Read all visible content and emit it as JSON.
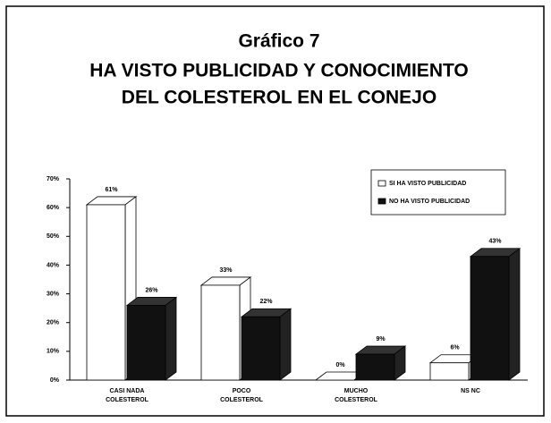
{
  "chart_data": {
    "type": "bar3d",
    "title": "Gráfico 7",
    "subtitle": [
      "HA VISTO PUBLICIDAD Y CONOCIMIENTO",
      "DEL COLESTEROL EN EL CONEJO"
    ],
    "categories": [
      [
        "CASI NADA",
        "COLESTEROL"
      ],
      [
        "POCO",
        "COLESTEROL"
      ],
      [
        "MUCHO",
        "COLESTEROL"
      ],
      [
        "NS NC"
      ]
    ],
    "series": [
      {
        "name": "SI HA VISTO PUBLICIDAD",
        "color": "#ffffff",
        "values": [
          61,
          33,
          0,
          6
        ],
        "value_labels": [
          "61%",
          "33%",
          "0%",
          "6%"
        ]
      },
      {
        "name": "NO HA VISTO PUBLICIDAD",
        "color": "#111111",
        "values": [
          26,
          22,
          9,
          43
        ],
        "value_labels": [
          "26%",
          "22%",
          "9%",
          "43%"
        ]
      }
    ],
    "ylim": [
      0,
      70
    ],
    "yticks": [
      {
        "value": 0,
        "label": "0%"
      },
      {
        "value": 10,
        "label": "10%"
      },
      {
        "value": 20,
        "label": "20%"
      },
      {
        "value": 30,
        "label": "30%"
      },
      {
        "value": 40,
        "label": "40%"
      },
      {
        "value": 50,
        "label": "50%"
      },
      {
        "value": 60,
        "label": "60%"
      },
      {
        "value": 70,
        "label": "70%"
      }
    ],
    "legend": "top-right"
  }
}
